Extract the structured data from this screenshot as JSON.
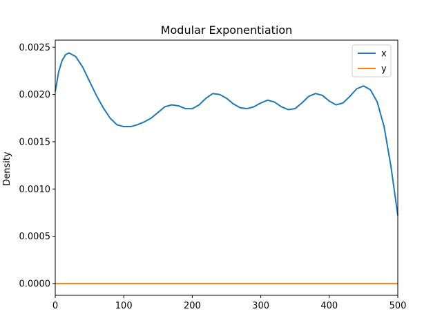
{
  "chart_data": {
    "type": "line",
    "title": "Modular Exponentiation",
    "xlabel": "",
    "ylabel": "Density",
    "xlim": [
      0,
      500
    ],
    "ylim": [
      -0.000125,
      0.002575
    ],
    "x_ticks": [
      0,
      100,
      200,
      300,
      400,
      500
    ],
    "x_tick_labels": [
      "0",
      "100",
      "200",
      "300",
      "400",
      "500"
    ],
    "y_ticks": [
      0.0,
      0.0005,
      0.001,
      0.0015,
      0.002,
      0.0025
    ],
    "y_tick_labels": [
      "0.0000",
      "0.0005",
      "0.0010",
      "0.0015",
      "0.0020",
      "0.0025"
    ],
    "grid": false,
    "legend_position": "top-right",
    "series": [
      {
        "name": "x",
        "color": "#1f77b4",
        "points": [
          [
            0,
            0.00203
          ],
          [
            5,
            0.00224
          ],
          [
            10,
            0.00236
          ],
          [
            15,
            0.00242
          ],
          [
            20,
            0.00244
          ],
          [
            30,
            0.0024
          ],
          [
            40,
            0.00229
          ],
          [
            50,
            0.00214
          ],
          [
            60,
            0.00199
          ],
          [
            70,
            0.00186
          ],
          [
            80,
            0.00175
          ],
          [
            90,
            0.00168
          ],
          [
            100,
            0.00166
          ],
          [
            110,
            0.00166
          ],
          [
            120,
            0.00168
          ],
          [
            130,
            0.00171
          ],
          [
            140,
            0.00175
          ],
          [
            150,
            0.00181
          ],
          [
            160,
            0.00187
          ],
          [
            170,
            0.00189
          ],
          [
            180,
            0.00188
          ],
          [
            190,
            0.00185
          ],
          [
            200,
            0.00185
          ],
          [
            210,
            0.00189
          ],
          [
            220,
            0.00196
          ],
          [
            230,
            0.00201
          ],
          [
            240,
            0.002
          ],
          [
            250,
            0.00196
          ],
          [
            260,
            0.0019
          ],
          [
            270,
            0.00186
          ],
          [
            280,
            0.00185
          ],
          [
            290,
            0.00187
          ],
          [
            300,
            0.00191
          ],
          [
            310,
            0.00194
          ],
          [
            320,
            0.00192
          ],
          [
            330,
            0.00187
          ],
          [
            340,
            0.00184
          ],
          [
            350,
            0.00185
          ],
          [
            360,
            0.00191
          ],
          [
            370,
            0.00198
          ],
          [
            380,
            0.00201
          ],
          [
            390,
            0.00199
          ],
          [
            400,
            0.00193
          ],
          [
            410,
            0.00189
          ],
          [
            420,
            0.00191
          ],
          [
            430,
            0.00198
          ],
          [
            440,
            0.00206
          ],
          [
            450,
            0.00209
          ],
          [
            460,
            0.00205
          ],
          [
            470,
            0.00192
          ],
          [
            480,
            0.00166
          ],
          [
            490,
            0.00124
          ],
          [
            500,
            0.00072
          ]
        ]
      },
      {
        "name": "y",
        "color": "#ff7f0e",
        "points": [
          [
            0,
            0.0
          ],
          [
            500,
            0.0
          ]
        ]
      }
    ]
  }
}
